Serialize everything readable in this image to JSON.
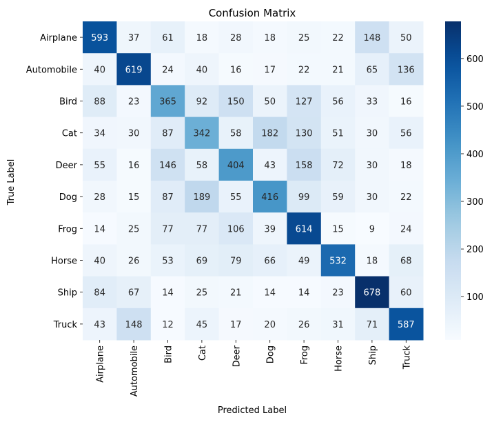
{
  "chart_data": {
    "type": "heatmap",
    "title": "Confusion Matrix",
    "xlabel": "Predicted Label",
    "ylabel": "True Label",
    "x_categories": [
      "Airplane",
      "Automobile",
      "Bird",
      "Cat",
      "Deer",
      "Dog",
      "Frog",
      "Horse",
      "Ship",
      "Truck"
    ],
    "y_categories": [
      "Airplane",
      "Automobile",
      "Bird",
      "Cat",
      "Deer",
      "Dog",
      "Frog",
      "Horse",
      "Ship",
      "Truck"
    ],
    "values": [
      [
        593,
        37,
        61,
        18,
        28,
        18,
        25,
        22,
        148,
        50
      ],
      [
        40,
        619,
        24,
        40,
        16,
        17,
        22,
        21,
        65,
        136
      ],
      [
        88,
        23,
        365,
        92,
        150,
        50,
        127,
        56,
        33,
        16
      ],
      [
        34,
        30,
        87,
        342,
        58,
        182,
        130,
        51,
        30,
        56
      ],
      [
        55,
        16,
        146,
        58,
        404,
        43,
        158,
        72,
        30,
        18
      ],
      [
        28,
        15,
        87,
        189,
        55,
        416,
        99,
        59,
        30,
        22
      ],
      [
        14,
        25,
        77,
        77,
        106,
        39,
        614,
        15,
        9,
        24
      ],
      [
        40,
        26,
        53,
        69,
        79,
        66,
        49,
        532,
        18,
        68
      ],
      [
        84,
        67,
        14,
        25,
        21,
        14,
        14,
        23,
        678,
        60
      ],
      [
        43,
        148,
        12,
        45,
        17,
        20,
        26,
        31,
        71,
        587
      ]
    ],
    "colorbar": {
      "colormap": "Blues",
      "range": [
        9,
        678
      ],
      "ticks": [
        100,
        200,
        300,
        400,
        500,
        600
      ]
    }
  }
}
